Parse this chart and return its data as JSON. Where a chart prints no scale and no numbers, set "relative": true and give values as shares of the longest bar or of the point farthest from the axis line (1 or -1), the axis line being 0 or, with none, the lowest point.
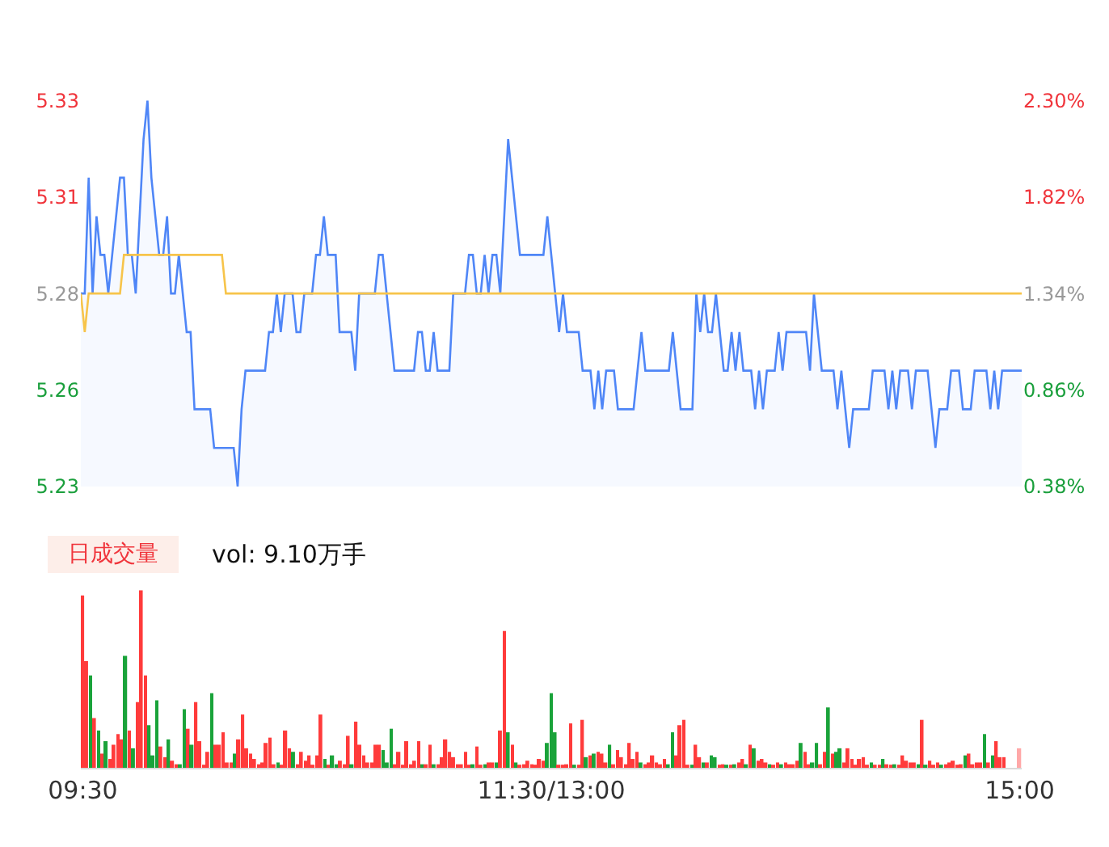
{
  "chart_data": [
    {
      "type": "area",
      "ylim": [
        5.23,
        5.33
      ],
      "categories": [
        null,
        null,
        null,
        null,
        null,
        null,
        null,
        null,
        null,
        null,
        null,
        null,
        null,
        null,
        null,
        null,
        null,
        null,
        null,
        null,
        null,
        null,
        null,
        null,
        null,
        null,
        null,
        null,
        null,
        null,
        null,
        null,
        null,
        null,
        null,
        null,
        null,
        null,
        null,
        null,
        null,
        null,
        null,
        null,
        null,
        null,
        null,
        null,
        null,
        null,
        null,
        null,
        null,
        null,
        null,
        null,
        null,
        null,
        null,
        null,
        null,
        null,
        null,
        null,
        null,
        null,
        null,
        null,
        null,
        null,
        null,
        null,
        null,
        null,
        null,
        null,
        null,
        null,
        null,
        null,
        null,
        null,
        null,
        null,
        null,
        null,
        null,
        null,
        null,
        null,
        null,
        null,
        null,
        null,
        null,
        null,
        null,
        null,
        null,
        null,
        null,
        null,
        null,
        null,
        null,
        null,
        null,
        null,
        null,
        null,
        null,
        null,
        null,
        null,
        null,
        null,
        null,
        null,
        null,
        null,
        null,
        null,
        null,
        null,
        null,
        null,
        null,
        null,
        null,
        null,
        null,
        null,
        null,
        null,
        null,
        null,
        null,
        null,
        null,
        null,
        null,
        null,
        null,
        null,
        null,
        null,
        null,
        null,
        null,
        null,
        null,
        null,
        null,
        null,
        null,
        null,
        null,
        null,
        null,
        null,
        null,
        null,
        null,
        null,
        null,
        null,
        null,
        null,
        null,
        null,
        null,
        null,
        null,
        null,
        null,
        null,
        null,
        null,
        null,
        null,
        null,
        null,
        null,
        null,
        null,
        null,
        null,
        null,
        null,
        null,
        null,
        null,
        null,
        null,
        null,
        null,
        null,
        null,
        null,
        null,
        null,
        null,
        null,
        null,
        null,
        null,
        null,
        null,
        null,
        null,
        null,
        null,
        null,
        null,
        null,
        null,
        null,
        null,
        null,
        null,
        null,
        null,
        null,
        null,
        null,
        null,
        null,
        null,
        null,
        null,
        null,
        null,
        null,
        null,
        null,
        null,
        null,
        null,
        null,
        null,
        null
      ],
      "yticks": [
        5.23,
        {
          "value": 5.255,
          "label": "5.26"
        },
        5.28,
        {
          "value": 5.305,
          "label": "5.31"
        },
        5.33
      ],
      "y2lim": [
        0.38,
        2.3
      ],
      "y2ticks": [
        {
          "value": 0.38,
          "label": "0.38%"
        },
        {
          "value": 0.86,
          "label": "0.86%"
        },
        {
          "value": 1.34,
          "label": "1.34%"
        },
        {
          "value": 1.82,
          "label": "1.82%"
        },
        {
          "value": 2.3,
          "label": "2.30%"
        }
      ],
      "tick_labels": "y",
      "marker": "none",
      "series": [
        {
          "type": "area",
          "color": "#4f86f7",
          "values": [
            5.28,
            5.28,
            5.31,
            5.28,
            5.3,
            5.29,
            5.29,
            5.28,
            5.29,
            5.3,
            5.31,
            5.31,
            5.29,
            5.29,
            5.28,
            5.3,
            5.32,
            5.33,
            5.31,
            5.3,
            5.29,
            5.29,
            5.3,
            5.28,
            5.28,
            5.29,
            5.28,
            5.27,
            5.27,
            5.25,
            5.25,
            5.25,
            5.25,
            5.25,
            5.24,
            5.24,
            5.24,
            5.24,
            5.24,
            5.24,
            5.23,
            5.25,
            5.26,
            5.26,
            5.26,
            5.26,
            5.26,
            5.26,
            5.27,
            5.27,
            5.28,
            5.27,
            5.28,
            5.28,
            5.28,
            5.27,
            5.27,
            5.28,
            5.28,
            5.28,
            5.29,
            5.29,
            5.3,
            5.29,
            5.29,
            5.29,
            5.27,
            5.27,
            5.27,
            5.27,
            5.26,
            5.28,
            5.28,
            5.28,
            5.28,
            5.28,
            5.29,
            5.29,
            5.28,
            5.27,
            5.26,
            5.26,
            5.26,
            5.26,
            5.26,
            5.26,
            5.27,
            5.27,
            5.26,
            5.26,
            5.27,
            5.26,
            5.26,
            5.26,
            5.26,
            5.28,
            5.28,
            5.28,
            5.28,
            5.29,
            5.29,
            5.28,
            5.28,
            5.29,
            5.28,
            5.29,
            5.29,
            5.28,
            5.3,
            5.32,
            5.31,
            5.3,
            5.29,
            5.29,
            5.29,
            5.29,
            5.29,
            5.29,
            5.29,
            5.3,
            5.29,
            5.28,
            5.27,
            5.28,
            5.27,
            5.27,
            5.27,
            5.27,
            5.26,
            5.26,
            5.26,
            5.25,
            5.26,
            5.25,
            5.26,
            5.26,
            5.26,
            5.25,
            5.25,
            5.25,
            5.25,
            5.25,
            5.26,
            5.27,
            5.26,
            5.26,
            5.26,
            5.26,
            5.26,
            5.26,
            5.26,
            5.27,
            5.26,
            5.25,
            5.25,
            5.25,
            5.25,
            5.28,
            5.27,
            5.28,
            5.27,
            5.27,
            5.28,
            5.27,
            5.26,
            5.26,
            5.27,
            5.26,
            5.27,
            5.26,
            5.26,
            5.26,
            5.25,
            5.26,
            5.25,
            5.26,
            5.26,
            5.26,
            5.27,
            5.26,
            5.27,
            5.27,
            5.27,
            5.27,
            5.27,
            5.27,
            5.26,
            5.28,
            5.27,
            5.26,
            5.26,
            5.26,
            5.26,
            5.25,
            5.26,
            5.25,
            5.24,
            5.25,
            5.25,
            5.25,
            5.25,
            5.25,
            5.26,
            5.26,
            5.26,
            5.26,
            5.25,
            5.26,
            5.25,
            5.26,
            5.26,
            5.26,
            5.25,
            5.26,
            5.26,
            5.26,
            5.26,
            5.25,
            5.24,
            5.25,
            5.25,
            5.25,
            5.26,
            5.26,
            5.26,
            5.25,
            5.25,
            5.25,
            5.26,
            5.26,
            5.26,
            5.26,
            5.25,
            5.26,
            5.25,
            5.26,
            5.26,
            5.26,
            5.26,
            5.26,
            5.26
          ]
        },
        {
          "type": "line",
          "color": "#f7c44a",
          "values": [
            5.28,
            5.27,
            5.28,
            5.28,
            5.28,
            5.28,
            5.28,
            5.28,
            5.28,
            5.28,
            5.28,
            5.29,
            5.29,
            5.29,
            5.29,
            5.29,
            5.29,
            5.29,
            5.29,
            5.29,
            5.29,
            5.29,
            5.29,
            5.29,
            5.29,
            5.29,
            5.29,
            5.29,
            5.29,
            5.29,
            5.29,
            5.29,
            5.29,
            5.29,
            5.29,
            5.29,
            5.29,
            5.28,
            5.28,
            5.28,
            5.28,
            5.28,
            5.28,
            5.28,
            5.28,
            5.28,
            5.28,
            5.28,
            5.28,
            5.28,
            5.28,
            5.28,
            5.28,
            5.28,
            5.28,
            5.28,
            5.28,
            5.28,
            5.28,
            5.28,
            5.28,
            5.28,
            5.28,
            5.28,
            5.28,
            5.28,
            5.28,
            5.28,
            5.28,
            5.28,
            5.28,
            5.28,
            5.28,
            5.28,
            5.28,
            5.28,
            5.28,
            5.28,
            5.28,
            5.28,
            5.28,
            5.28,
            5.28,
            5.28,
            5.28,
            5.28,
            5.28,
            5.28,
            5.28,
            5.28,
            5.28,
            5.28,
            5.28,
            5.28,
            5.28,
            5.28,
            5.28,
            5.28,
            5.28,
            5.28,
            5.28,
            5.28,
            5.28,
            5.28,
            5.28,
            5.28,
            5.28,
            5.28,
            5.28,
            5.28,
            5.28,
            5.28,
            5.28,
            5.28,
            5.28,
            5.28,
            5.28,
            5.28,
            5.28,
            5.28,
            5.28,
            5.28,
            5.28,
            5.28,
            5.28,
            5.28,
            5.28,
            5.28,
            5.28,
            5.28,
            5.28,
            5.28,
            5.28,
            5.28,
            5.28,
            5.28,
            5.28,
            5.28,
            5.28,
            5.28,
            5.28,
            5.28,
            5.28,
            5.28,
            5.28,
            5.28,
            5.28,
            5.28,
            5.28,
            5.28,
            5.28,
            5.28,
            5.28,
            5.28,
            5.28,
            5.28,
            5.28,
            5.28,
            5.28,
            5.28,
            5.28,
            5.28,
            5.28,
            5.28,
            5.28,
            5.28,
            5.28,
            5.28,
            5.28,
            5.28,
            5.28,
            5.28,
            5.28,
            5.28,
            5.28,
            5.28,
            5.28,
            5.28,
            5.28,
            5.28,
            5.28,
            5.28,
            5.28,
            5.28,
            5.28,
            5.28,
            5.28,
            5.28,
            5.28,
            5.28,
            5.28,
            5.28,
            5.28,
            5.28,
            5.28,
            5.28,
            5.28,
            5.28,
            5.28,
            5.28,
            5.28,
            5.28,
            5.28,
            5.28,
            5.28,
            5.28,
            5.28,
            5.28,
            5.28,
            5.28,
            5.28,
            5.28,
            5.28,
            5.28,
            5.28,
            5.28,
            5.28,
            5.28,
            5.28,
            5.28,
            5.28,
            5.28,
            5.28,
            5.28,
            5.28,
            5.28,
            5.28,
            5.28,
            5.28,
            5.28,
            5.28,
            5.28,
            5.28,
            5.28,
            5.28,
            5.28,
            5.28,
            5.28,
            5.28,
            5.28,
            5.28
          ]
        }
      ]
    },
    {
      "type": "bar",
      "relative": true,
      "categories": [
        "09:30",
        null,
        null,
        null,
        null,
        null,
        null,
        null,
        null,
        null,
        null,
        null,
        null,
        null,
        null,
        null,
        null,
        null,
        null,
        null,
        null,
        null,
        null,
        null,
        null,
        null,
        null,
        null,
        null,
        null,
        null,
        null,
        null,
        null,
        null,
        null,
        null,
        null,
        null,
        null,
        null,
        null,
        null,
        null,
        null,
        null,
        null,
        null,
        null,
        null,
        null,
        null,
        null,
        null,
        null,
        null,
        null,
        null,
        null,
        null,
        null,
        null,
        null,
        null,
        null,
        null,
        null,
        null,
        null,
        null,
        null,
        null,
        null,
        null,
        null,
        null,
        null,
        null,
        null,
        null,
        null,
        null,
        null,
        null,
        null,
        null,
        null,
        null,
        null,
        null,
        null,
        null,
        null,
        null,
        null,
        null,
        null,
        null,
        null,
        null,
        null,
        null,
        null,
        null,
        null,
        null,
        null,
        null,
        null,
        null,
        null,
        null,
        null,
        null,
        null,
        null,
        null,
        null,
        null,
        null,
        "11:30/13:00",
        null,
        null,
        null,
        null,
        null,
        null,
        null,
        null,
        null,
        null,
        null,
        null,
        null,
        null,
        null,
        null,
        null,
        null,
        null,
        null,
        null,
        null,
        null,
        null,
        null,
        null,
        null,
        null,
        null,
        null,
        null,
        null,
        null,
        null,
        null,
        null,
        null,
        null,
        null,
        null,
        null,
        null,
        null,
        null,
        null,
        null,
        null,
        null,
        null,
        null,
        null,
        null,
        null,
        null,
        null,
        null,
        null,
        null,
        null,
        null,
        null,
        null,
        null,
        null,
        null,
        null,
        null,
        null,
        null,
        null,
        null,
        null,
        null,
        null,
        null,
        null,
        null,
        null,
        null,
        null,
        null,
        null,
        null,
        null,
        null,
        null,
        null,
        null,
        null,
        null,
        null,
        null,
        null,
        null,
        null,
        null,
        null,
        null,
        null,
        null,
        null,
        null,
        null,
        null,
        null,
        null,
        null,
        null,
        null,
        null,
        null,
        null,
        null,
        null,
        null,
        null,
        null,
        null,
        null,
        "15:00"
      ],
      "tick_labels": "x",
      "annotations": [
        "日成交量",
        "vol: 9.10万手"
      ],
      "values": [
        0.97,
        0.6,
        0.52,
        0.28,
        0.21,
        0.08,
        0.15,
        0.05,
        0.13,
        0.19,
        0.16,
        0.63,
        0.21,
        0.11,
        0.37,
        1.0,
        0.52,
        0.24,
        0.07,
        0.38,
        0.12,
        0.06,
        0.16,
        0.04,
        0.02,
        0.02,
        0.33,
        0.22,
        0.13,
        0.37,
        0.15,
        0.01,
        0.09,
        0.42,
        0.13,
        0.13,
        0.2,
        0.03,
        0.03,
        0.08,
        0.16,
        0.3,
        0.11,
        0.08,
        0.05,
        0.02,
        0.03,
        0.14,
        0.17,
        0.02,
        0.03,
        0.01,
        0.21,
        0.11,
        0.09,
        0.02,
        0.09,
        0.04,
        0.07,
        0.01,
        0.07,
        0.3,
        0.05,
        0.01,
        0.07,
        0.02,
        0.04,
        0.02,
        0.18,
        0.02,
        0.26,
        0.13,
        0.07,
        0.03,
        0.03,
        0.13,
        0.13,
        0.1,
        0.03,
        0.22,
        0.02,
        0.09,
        0.01,
        0.15,
        0.02,
        0.04,
        0.15,
        0.02,
        0.02,
        0.13,
        0.02,
        0.02,
        0.06,
        0.16,
        0.09,
        0.06,
        0.02,
        0.02,
        0.09,
        0.01,
        0.02,
        0.12,
        0.01,
        0.02,
        0.03,
        0.03,
        0.03,
        0.21,
        0.77,
        0.2,
        0.13,
        0.03,
        0.01,
        0.02,
        0.04,
        0.02,
        0.01,
        0.05,
        0.04,
        0.14,
        0.42,
        0.2,
        0.01,
        0.01,
        0.02,
        0.25,
        0.01,
        0.01,
        0.27,
        0.06,
        0.07,
        0.08,
        0.09,
        0.08,
        0.03,
        0.13,
        0.02,
        0.1,
        0.06,
        0.02,
        0.14,
        0.05,
        0.09,
        0.03,
        0.02,
        0.03,
        0.07,
        0.03,
        0.02,
        0.05,
        0.02,
        0.2,
        0.07,
        0.24,
        0.27,
        0.01,
        0.01,
        0.13,
        0.06,
        0.03,
        0.03,
        0.07,
        0.06,
        0.01,
        0.02,
        0.01,
        0.01,
        0.02,
        0.03,
        0.05,
        0.02,
        0.13,
        0.11,
        0.04,
        0.05,
        0.03,
        0.02,
        0.01,
        0.03,
        0.02,
        0.03,
        0.02,
        0.02,
        0.04,
        0.14,
        0.09,
        0.02,
        0.03,
        0.14,
        0.02,
        0.09,
        0.34,
        0.08,
        0.09,
        0.11,
        0.03,
        0.11,
        0.05,
        0.01,
        0.05,
        0.06,
        0.01,
        0.03,
        0.01,
        0.01,
        0.05,
        0.02,
        0.01,
        0.02,
        0.01,
        0.07,
        0.04,
        0.03,
        0.03,
        0.02,
        0.27,
        0.01,
        0.04,
        0.01,
        0.03,
        0.01,
        0.02,
        0.03,
        0.04,
        0.01,
        0.02,
        0.07,
        0.08,
        0.02,
        0.03,
        0.03,
        0.19,
        0.03,
        0.07,
        0.15,
        0.06,
        0.06,
        null,
        null,
        null,
        0.11
      ],
      "colors": [
        "#ff3b3b",
        "#ff3b3b",
        "#1aa33a",
        "#ff3b3b",
        "#1aa33a",
        "#ff3b3b",
        "#1aa33a",
        "#ff3b3b",
        "#ff3b3b",
        "#ff3b3b",
        "#ff3b3b",
        "#1aa33a",
        "#ff3b3b",
        "#1aa33a",
        "#ff3b3b",
        "#ff3b3b",
        "#ff3b3b",
        "#1aa33a",
        "#1aa33a",
        "#1aa33a",
        "#ff3b3b",
        "#ff3b3b",
        "#1aa33a",
        "#ff3b3b",
        "#ff3b3b",
        "#1aa33a",
        "#1aa33a",
        "#ff3b3b",
        "#1aa33a",
        "#ff3b3b",
        "#ff3b3b",
        "#ff3b3b",
        "#ff3b3b",
        "#1aa33a",
        "#ff3b3b",
        "#ff3b3b",
        "#ff3b3b",
        "#ff3b3b",
        "#ff3b3b",
        "#1aa33a",
        "#ff3b3b",
        "#ff3b3b",
        "#ff3b3b",
        "#ff3b3b",
        "#ff3b3b",
        "#ff3b3b",
        "#ff3b3b",
        "#ff3b3b",
        "#ff3b3b",
        "#ff3b3b",
        "#1aa33a",
        "#ff3b3b",
        "#ff3b3b",
        "#ff3b3b",
        "#1aa33a",
        "#ff3b3b",
        "#ff3b3b",
        "#ff3b3b",
        "#ff3b3b",
        "#ff3b3b",
        "#ff3b3b",
        "#ff3b3b",
        "#1aa33a",
        "#ff3b3b",
        "#1aa33a",
        "#1aa33a",
        "#ff3b3b",
        "#ff3b3b",
        "#ff3b3b",
        "#1aa33a",
        "#ff3b3b",
        "#ff3b3b",
        "#ff3b3b",
        "#ff3b3b",
        "#ff3b3b",
        "#ff3b3b",
        "#ff3b3b",
        "#1aa33a",
        "#1aa33a",
        "#1aa33a",
        "#ff3b3b",
        "#ff3b3b",
        "#ff3b3b",
        "#ff3b3b",
        "#ff3b3b",
        "#ff3b3b",
        "#ff3b3b",
        "#1aa33a",
        "#ff3b3b",
        "#ff3b3b",
        "#1aa33a",
        "#ff3b3b",
        "#ff3b3b",
        "#ff3b3b",
        "#ff3b3b",
        "#ff3b3b",
        "#ff3b3b",
        "#ff3b3b",
        "#ff3b3b",
        "#ff3b3b",
        "#1aa33a",
        "#ff3b3b",
        "#ff3b3b",
        "#1aa33a",
        "#ff3b3b",
        "#ff3b3b",
        "#1aa33a",
        "#ff3b3b",
        "#ff3b3b",
        "#1aa33a",
        "#ff3b3b",
        "#1aa33a",
        "#ff3b3b",
        "#ff3b3b",
        "#ff3b3b",
        "#ff3b3b",
        "#ff3b3b",
        "#ff3b3b",
        "#ff3b3b",
        "#1aa33a",
        "#1aa33a",
        "#1aa33a",
        "#ff3b3b",
        "#ff3b3b",
        "#ff3b3b",
        "#ff3b3b",
        "#1aa33a",
        "#ff3b3b",
        "#ff3b3b",
        "#1aa33a",
        "#ff3b3b",
        "#1aa33a",
        "#ff3b3b",
        "#ff3b3b",
        "#ff3b3b",
        "#1aa33a",
        "#ff3b3b",
        "#ff3b3b",
        "#ff3b3b",
        "#ff3b3b",
        "#ff3b3b",
        "#ff3b3b",
        "#ff3b3b",
        "#1aa33a",
        "#ff3b3b",
        "#ff3b3b",
        "#ff3b3b",
        "#ff3b3b",
        "#ff3b3b",
        "#ff3b3b",
        "#1aa33a",
        "#1aa33a",
        "#ff3b3b",
        "#ff3b3b",
        "#ff3b3b",
        "#ff3b3b",
        "#1aa33a",
        "#ff3b3b",
        "#ff3b3b",
        "#1aa33a",
        "#ff3b3b",
        "#1aa33a",
        "#1aa33a",
        "#ff3b3b",
        "#ff3b3b",
        "#1aa33a",
        "#ff3b3b",
        "#1aa33a",
        "#ff3b3b",
        "#ff3b3b",
        "#1aa33a",
        "#ff3b3b",
        "#1aa33a",
        "#ff3b3b",
        "#ff3b3b",
        "#ff3b3b",
        "#1aa33a",
        "#ff3b3b",
        "#ff3b3b",
        "#1aa33a",
        "#ff3b3b",
        "#ff3b3b",
        "#ff3b3b",
        "#ff3b3b",
        "#1aa33a",
        "#ff3b3b",
        "#ff3b3b",
        "#1aa33a",
        "#1aa33a",
        "#ff3b3b",
        "#ff3b3b",
        "#1aa33a",
        "#ff3b3b",
        "#1aa33a",
        "#1aa33a",
        "#ff3b3b",
        "#ff3b3b",
        "#ff3b3b",
        "#ff3b3b",
        "#ff3b3b",
        "#ff3b3b",
        "#ff3b3b",
        "#1aa33a",
        "#ff3b3b",
        "#ff3b3b",
        "#1aa33a",
        "#ff3b3b",
        "#ff3b3b",
        "#1aa33a",
        "#ff3b3b",
        "#ff3b3b",
        "#ff3b3b",
        "#ff3b3b",
        "#ff3b3b",
        "#1aa33a",
        "#ff3b3b",
        "#1aa33a",
        "#ff3b3b",
        "#ff3b3b",
        "#ff3b3b",
        "#1aa33a",
        "#ff3b3b",
        "#ff3b3b",
        "#ff3b3b",
        "#ff3b3b",
        "#ff3b3b",
        "#1aa33a",
        "#ff3b3b",
        "#ff3b3b",
        "#ff3b3b",
        "#ff3b3b",
        "#1aa33a",
        "#ff3b3b",
        "#1aa33a",
        "#ff3b3b",
        "#ff3b3b",
        "#ff3b3b",
        null,
        null,
        null,
        "#ffa8a8"
      ]
    }
  ]
}
